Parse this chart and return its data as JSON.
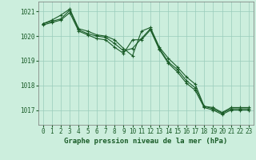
{
  "background_color": "#cceedd",
  "grid_color": "#99ccbb",
  "line_color": "#1a5c28",
  "xlabel": "Graphe pression niveau de la mer (hPa)",
  "xlabel_fontsize": 6.5,
  "tick_fontsize": 5.5,
  "ylim": [
    1016.4,
    1021.4
  ],
  "yticks": [
    1017,
    1018,
    1019,
    1020,
    1021
  ],
  "xlim": [
    -0.5,
    23.5
  ],
  "xticks": [
    0,
    1,
    2,
    3,
    4,
    5,
    6,
    7,
    8,
    9,
    10,
    11,
    12,
    13,
    14,
    15,
    16,
    17,
    18,
    19,
    20,
    21,
    22,
    23
  ],
  "series": [
    [
      1020.5,
      1020.65,
      1020.85,
      1021.1,
      1020.3,
      1020.2,
      1020.05,
      1020.0,
      1019.85,
      1019.5,
      1019.2,
      1020.2,
      1020.35,
      1019.55,
      1019.1,
      1018.75,
      1018.35,
      1018.05,
      1017.15,
      1017.1,
      1016.9,
      1017.1,
      1017.1,
      1017.1
    ],
    [
      1020.5,
      1020.6,
      1020.7,
      1021.05,
      1020.25,
      1020.1,
      1020.0,
      1019.95,
      1019.7,
      1019.4,
      1019.5,
      1019.9,
      1020.3,
      1019.5,
      1018.95,
      1018.65,
      1018.2,
      1017.9,
      1017.15,
      1017.05,
      1016.87,
      1017.05,
      1017.05,
      1017.05
    ],
    [
      1020.45,
      1020.55,
      1020.65,
      1020.95,
      1020.2,
      1020.05,
      1019.9,
      1019.85,
      1019.55,
      1019.3,
      1019.85,
      1019.85,
      1020.25,
      1019.45,
      1018.9,
      1018.55,
      1018.1,
      1017.8,
      1017.1,
      1017.0,
      1016.82,
      1017.0,
      1017.0,
      1017.0
    ]
  ]
}
